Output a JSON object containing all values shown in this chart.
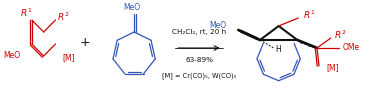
{
  "background_color": "#ffffff",
  "figsize": [
    3.78,
    0.95
  ],
  "dpi": 100,
  "condition1": "CH₂Cl₂, rt, 20 h",
  "condition2": "63-89%",
  "condition3": "[M] = Cr(CO)₅, W(CO)₅",
  "red_color": "#cc0000",
  "blue_color": "#3355bb",
  "black_color": "#111111"
}
